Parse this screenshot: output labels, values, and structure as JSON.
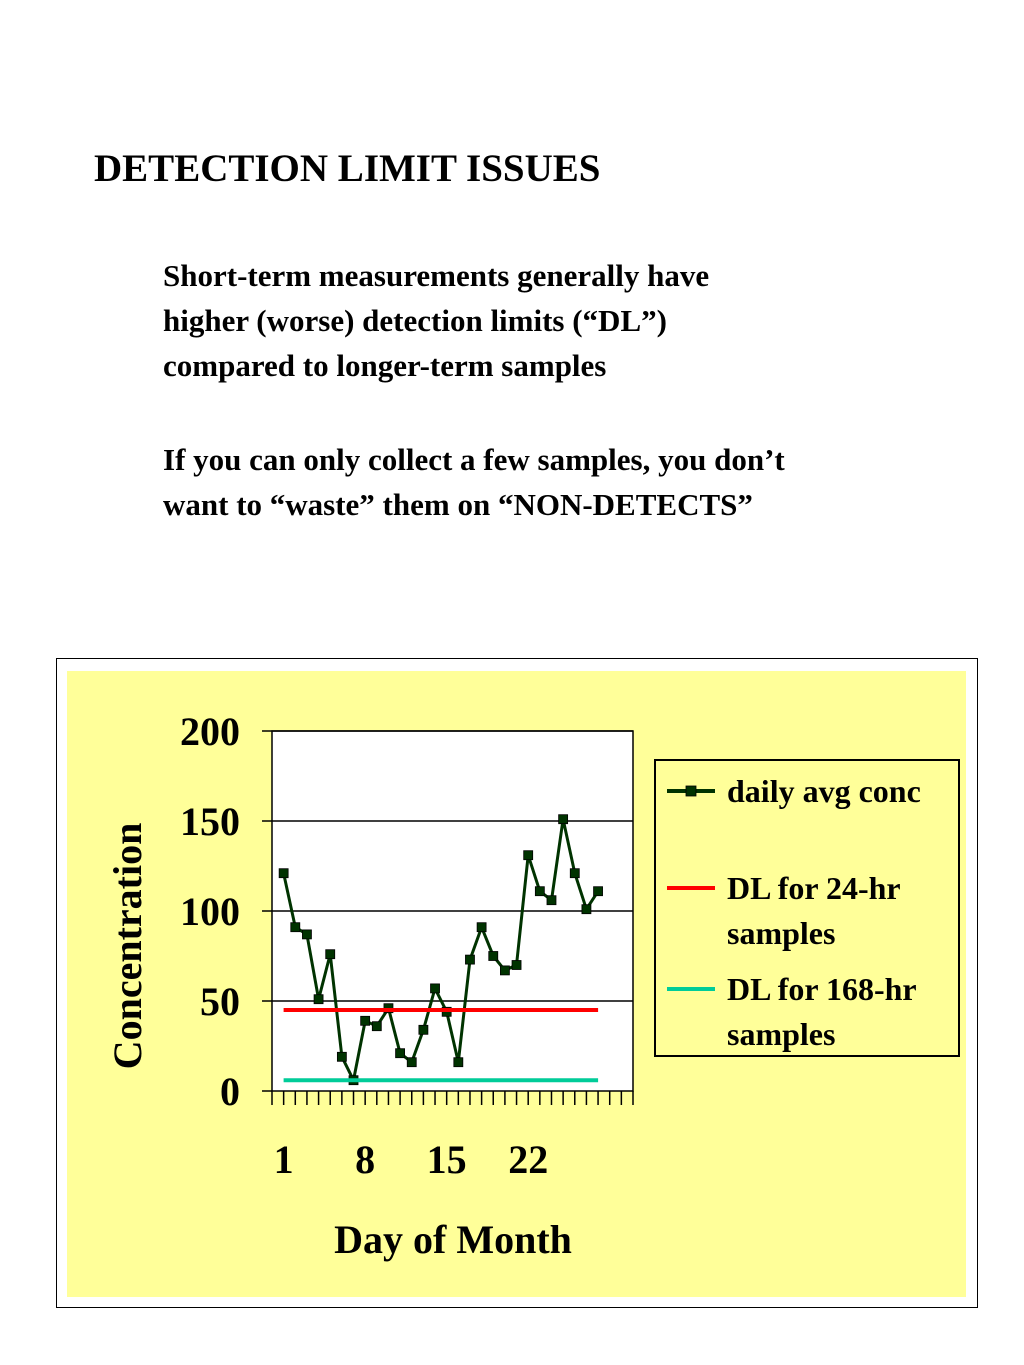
{
  "slide": {
    "title": "DETECTION LIMIT ISSUES",
    "paragraph1": [
      "Short-term measurements generally have",
      "higher (worse) detection limits (“DL”)",
      "compared to longer-term samples"
    ],
    "paragraph2": [
      "If you can only collect a few samples, you don’t",
      "want to “waste” them on “NON-DETECTS”"
    ]
  },
  "chart_data": {
    "type": "line",
    "xlabel": "Day of Month",
    "ylabel": "Concentration",
    "xlim": [
      0,
      31
    ],
    "ylim": [
      0,
      200
    ],
    "x_ticks": [
      1,
      8,
      15,
      22
    ],
    "y_ticks": [
      0,
      50,
      100,
      150,
      200
    ],
    "grid": "horizontal",
    "legend_position": "right",
    "plot_background": "#ffffff",
    "area_background": "#ffff99",
    "series": [
      {
        "name": "daily avg conc",
        "color": "#003300",
        "marker": "square",
        "x": [
          1,
          2,
          3,
          4,
          5,
          6,
          7,
          8,
          9,
          10,
          11,
          12,
          13,
          14,
          15,
          16,
          17,
          18,
          19,
          20,
          21,
          22,
          23,
          24,
          25,
          26,
          27,
          28
        ],
        "y": [
          121,
          91,
          87,
          51,
          76,
          19,
          6,
          39,
          36,
          46,
          21,
          16,
          34,
          57,
          44,
          16,
          73,
          91,
          75,
          67,
          70,
          131,
          111,
          106,
          151,
          121,
          101,
          111
        ]
      },
      {
        "name": "DL for 24-hr samples",
        "color": "#ff0000",
        "x": [
          1,
          28
        ],
        "y": [
          45,
          45
        ]
      },
      {
        "name": "DL for 168-hr samples",
        "color": "#00cc99",
        "x": [
          1,
          28
        ],
        "y": [
          6,
          6
        ]
      }
    ],
    "legend_entries": [
      [
        "daily avg conc"
      ],
      [
        "DL for 24-hr",
        "samples"
      ],
      [
        "DL for 168-hr",
        "samples"
      ]
    ]
  }
}
